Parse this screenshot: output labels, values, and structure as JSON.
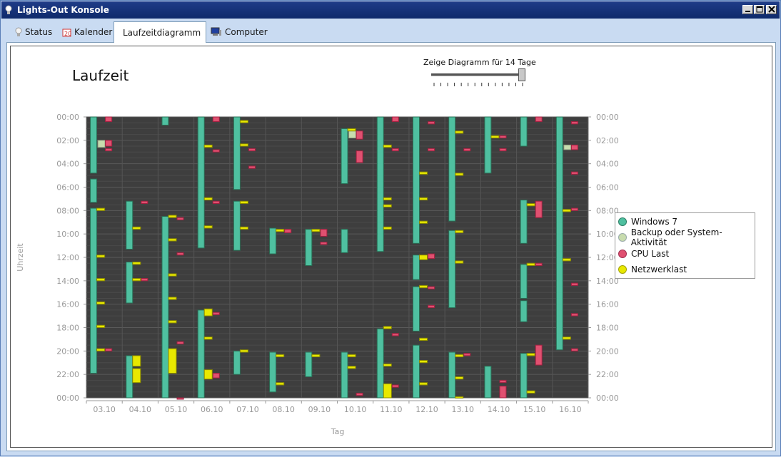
{
  "window": {
    "title": "Lights-Out Konsole"
  },
  "tabs": [
    {
      "label": "Status",
      "icon": "bulb-icon"
    },
    {
      "label": "Kalender",
      "icon": "calendar-icon"
    },
    {
      "label": "Laufzeitdiagramm",
      "icon": "bar-chart-icon",
      "active": true
    },
    {
      "label": "Computer",
      "icon": "computer-icon"
    }
  ],
  "slider": {
    "label": "Zeige Diagramm für 14 Tage",
    "value": 14,
    "ticks": 14
  },
  "chart_data": {
    "type": "timeline",
    "title": "Laufzeit",
    "xlabel": "Tag",
    "ylabel": "Uhrzeit",
    "categories": [
      "03.10",
      "04.10",
      "05.10",
      "06.10",
      "07.10",
      "08.10",
      "09.10",
      "10.10",
      "11.10",
      "12.10",
      "13.10",
      "14.10",
      "15.10",
      "16.10"
    ],
    "y_ticks": [
      "00:00",
      "02:00",
      "04:00",
      "06:00",
      "08:00",
      "10:00",
      "12:00",
      "14:00",
      "16:00",
      "18:00",
      "20:00",
      "22:00",
      "00:00"
    ],
    "ylim_hours": [
      0,
      24
    ],
    "colors": {
      "windows7": "#4fc0a0",
      "backup": "#c8dcae",
      "cpu": "#e05070",
      "network": "#e8e800"
    },
    "series": [
      {
        "name": "Windows 7",
        "color": "#4fc0a0",
        "day_offset": -0.3,
        "width": 0.18,
        "intervals": [
          [
            0,
            [
              0,
              4.8
            ]
          ],
          [
            0,
            [
              5.3,
              7.3
            ]
          ],
          [
            0,
            [
              7.8,
              21.9
            ]
          ],
          [
            1,
            [
              7.2,
              11.3
            ]
          ],
          [
            1,
            [
              12.4,
              15.9
            ]
          ],
          [
            1,
            [
              20.4,
              24
            ]
          ],
          [
            2,
            [
              0,
              0.7
            ]
          ],
          [
            2,
            [
              8.5,
              24
            ]
          ],
          [
            3,
            [
              0,
              11.2
            ]
          ],
          [
            3,
            [
              16.5,
              24
            ]
          ],
          [
            4,
            [
              0,
              6.2
            ]
          ],
          [
            4,
            [
              7.2,
              11.4
            ]
          ],
          [
            4,
            [
              20,
              22
            ]
          ],
          [
            5,
            [
              9.5,
              11.7
            ]
          ],
          [
            5,
            [
              20.1,
              23.5
            ]
          ],
          [
            6,
            [
              9.6,
              12.7
            ]
          ],
          [
            6,
            [
              20.1,
              22.2
            ]
          ],
          [
            7,
            [
              1,
              5.7
            ]
          ],
          [
            7,
            [
              9.6,
              11.6
            ]
          ],
          [
            7,
            [
              20.1,
              24
            ]
          ],
          [
            8,
            [
              0,
              11.5
            ]
          ],
          [
            8,
            [
              18.1,
              24
            ]
          ],
          [
            9,
            [
              0,
              10.8
            ]
          ],
          [
            9,
            [
              11.8,
              13.9
            ]
          ],
          [
            9,
            [
              14.5,
              18.3
            ]
          ],
          [
            9,
            [
              19.5,
              24
            ]
          ],
          [
            10,
            [
              0,
              8.9
            ]
          ],
          [
            10,
            [
              9.7,
              16.3
            ]
          ],
          [
            10,
            [
              20.1,
              24
            ]
          ],
          [
            11,
            [
              0,
              4.8
            ]
          ],
          [
            11,
            [
              21.3,
              24
            ]
          ],
          [
            12,
            [
              0,
              2.5
            ]
          ],
          [
            12,
            [
              7.1,
              10.8
            ]
          ],
          [
            12,
            [
              12.6,
              15.5
            ]
          ],
          [
            12,
            [
              15.7,
              17.5
            ]
          ],
          [
            12,
            [
              20.2,
              24
            ]
          ],
          [
            13,
            [
              0,
              19.9
            ]
          ]
        ]
      },
      {
        "name": "Backup oder System-Aktivität",
        "color": "#c8dcae",
        "day_offset": -0.08,
        "width": 0.2,
        "intervals": [
          [
            0,
            [
              2.0,
              2.6
            ]
          ],
          [
            7,
            [
              1.2,
              1.8
            ]
          ],
          [
            13,
            [
              2.4,
              2.8
            ]
          ]
        ]
      },
      {
        "name": "CPU Last",
        "color": "#e05070",
        "day_offset": 0.12,
        "width": 0.18,
        "intervals": [
          [
            0,
            [
              0.0,
              0.4
            ]
          ],
          [
            0,
            [
              2.0,
              2.5
            ]
          ],
          [
            0,
            [
              2.7,
              2.9
            ]
          ],
          [
            0,
            [
              19.8,
              20.0
            ]
          ],
          [
            1,
            [
              7.2,
              7.4
            ]
          ],
          [
            1,
            [
              13.8,
              14.0
            ]
          ],
          [
            2,
            [
              8.6,
              8.8
            ]
          ],
          [
            2,
            [
              11.6,
              11.8
            ]
          ],
          [
            2,
            [
              19.2,
              19.4
            ]
          ],
          [
            2,
            [
              24.0,
              24.2
            ]
          ],
          [
            3,
            [
              0.0,
              0.4
            ]
          ],
          [
            3,
            [
              2.8,
              3.0
            ]
          ],
          [
            3,
            [
              7.2,
              7.4
            ]
          ],
          [
            3,
            [
              16.7,
              16.9
            ]
          ],
          [
            3,
            [
              21.9,
              22.3
            ]
          ],
          [
            4,
            [
              2.7,
              2.9
            ]
          ],
          [
            4,
            [
              4.2,
              4.4
            ]
          ],
          [
            5,
            [
              9.6,
              9.9
            ]
          ],
          [
            6,
            [
              9.6,
              10.2
            ]
          ],
          [
            6,
            [
              10.7,
              10.9
            ]
          ],
          [
            7,
            [
              1.2,
              1.9
            ]
          ],
          [
            7,
            [
              2.9,
              3.9
            ]
          ],
          [
            7,
            [
              23.6,
              23.8
            ]
          ],
          [
            8,
            [
              0.0,
              0.4
            ]
          ],
          [
            8,
            [
              2.7,
              2.9
            ]
          ],
          [
            8,
            [
              18.5,
              18.7
            ]
          ],
          [
            8,
            [
              22.9,
              23.1
            ]
          ],
          [
            9,
            [
              0.4,
              0.6
            ]
          ],
          [
            9,
            [
              2.7,
              2.9
            ]
          ],
          [
            9,
            [
              11.7,
              12.1
            ]
          ],
          [
            9,
            [
              14.5,
              14.7
            ]
          ],
          [
            9,
            [
              16.1,
              16.3
            ]
          ],
          [
            10,
            [
              2.7,
              2.9
            ]
          ],
          [
            10,
            [
              20.2,
              20.4
            ]
          ],
          [
            11,
            [
              1.6,
              1.8
            ]
          ],
          [
            11,
            [
              2.7,
              2.9
            ]
          ],
          [
            11,
            [
              22.5,
              22.7
            ]
          ],
          [
            11,
            [
              23.0,
              24.0
            ]
          ],
          [
            12,
            [
              0.0,
              0.4
            ]
          ],
          [
            12,
            [
              7.2,
              8.6
            ]
          ],
          [
            12,
            [
              12.5,
              12.7
            ]
          ],
          [
            12,
            [
              19.5,
              21.2
            ]
          ],
          [
            13,
            [
              0.4,
              0.6
            ]
          ],
          [
            13,
            [
              2.4,
              2.8
            ]
          ],
          [
            13,
            [
              4.7,
              4.9
            ]
          ],
          [
            13,
            [
              7.8,
              8.0
            ]
          ],
          [
            13,
            [
              14.2,
              14.4
            ]
          ],
          [
            13,
            [
              16.8,
              17.0
            ]
          ],
          [
            13,
            [
              19.8,
              20.0
            ]
          ]
        ]
      },
      {
        "name": "Netzwerklast",
        "color": "#e8e800",
        "day_offset": -0.1,
        "width": 0.22,
        "intervals": [
          [
            0,
            [
              7.8,
              8.0
            ]
          ],
          [
            0,
            [
              11.8,
              12.0
            ]
          ],
          [
            0,
            [
              13.8,
              14.0
            ]
          ],
          [
            0,
            [
              15.8,
              16.0
            ]
          ],
          [
            0,
            [
              17.8,
              18.0
            ]
          ],
          [
            0,
            [
              19.8,
              20.0
            ]
          ],
          [
            1,
            [
              9.4,
              9.6
            ]
          ],
          [
            1,
            [
              12.4,
              12.6
            ]
          ],
          [
            1,
            [
              13.8,
              14.0
            ]
          ],
          [
            1,
            [
              20.4,
              21.3
            ]
          ],
          [
            1,
            [
              21.5,
              22.7
            ]
          ],
          [
            2,
            [
              8.4,
              8.6
            ]
          ],
          [
            2,
            [
              10.4,
              10.6
            ]
          ],
          [
            2,
            [
              13.4,
              13.6
            ]
          ],
          [
            2,
            [
              15.4,
              15.6
            ]
          ],
          [
            2,
            [
              17.4,
              17.6
            ]
          ],
          [
            2,
            [
              19.8,
              21.9
            ]
          ],
          [
            3,
            [
              2.4,
              2.6
            ]
          ],
          [
            3,
            [
              6.9,
              7.1
            ]
          ],
          [
            3,
            [
              9.3,
              9.5
            ]
          ],
          [
            3,
            [
              16.4,
              17.0
            ]
          ],
          [
            3,
            [
              18.8,
              19.0
            ]
          ],
          [
            3,
            [
              21.6,
              22.4
            ]
          ],
          [
            4,
            [
              0.3,
              0.5
            ]
          ],
          [
            4,
            [
              2.3,
              2.5
            ]
          ],
          [
            4,
            [
              7.2,
              7.4
            ]
          ],
          [
            4,
            [
              9.4,
              9.6
            ]
          ],
          [
            4,
            [
              19.9,
              20.1
            ]
          ],
          [
            5,
            [
              9.6,
              9.8
            ]
          ],
          [
            5,
            [
              20.3,
              20.5
            ]
          ],
          [
            5,
            [
              22.7,
              22.9
            ]
          ],
          [
            6,
            [
              9.6,
              9.8
            ]
          ],
          [
            6,
            [
              20.3,
              20.5
            ]
          ],
          [
            7,
            [
              1.0,
              1.2
            ]
          ],
          [
            7,
            [
              20.3,
              20.5
            ]
          ],
          [
            7,
            [
              21.3,
              21.5
            ]
          ],
          [
            8,
            [
              2.4,
              2.6
            ]
          ],
          [
            8,
            [
              6.9,
              7.1
            ]
          ],
          [
            8,
            [
              7.5,
              7.7
            ]
          ],
          [
            8,
            [
              9.4,
              9.6
            ]
          ],
          [
            8,
            [
              17.9,
              18.1
            ]
          ],
          [
            8,
            [
              21.1,
              21.3
            ]
          ],
          [
            8,
            [
              22.8,
              24.0
            ]
          ],
          [
            9,
            [
              4.7,
              4.9
            ]
          ],
          [
            9,
            [
              6.9,
              7.1
            ]
          ],
          [
            9,
            [
              8.9,
              9.1
            ]
          ],
          [
            9,
            [
              11.8,
              12.2
            ]
          ],
          [
            9,
            [
              14.4,
              14.6
            ]
          ],
          [
            9,
            [
              18.9,
              19.1
            ]
          ],
          [
            9,
            [
              20.8,
              21.0
            ]
          ],
          [
            9,
            [
              22.7,
              22.9
            ]
          ],
          [
            10,
            [
              1.2,
              1.4
            ]
          ],
          [
            10,
            [
              4.8,
              5.0
            ]
          ],
          [
            10,
            [
              9.7,
              9.9
            ]
          ],
          [
            10,
            [
              12.3,
              12.5
            ]
          ],
          [
            10,
            [
              20.3,
              20.5
            ]
          ],
          [
            10,
            [
              22.2,
              22.4
            ]
          ],
          [
            10,
            [
              23.9,
              24.1
            ]
          ],
          [
            11,
            [
              1.6,
              1.8
            ]
          ],
          [
            12,
            [
              7.4,
              7.6
            ]
          ],
          [
            12,
            [
              12.5,
              12.7
            ]
          ],
          [
            12,
            [
              20.2,
              20.4
            ]
          ],
          [
            12,
            [
              23.4,
              23.6
            ]
          ],
          [
            13,
            [
              7.9,
              8.1
            ]
          ],
          [
            13,
            [
              12.1,
              12.3
            ]
          ],
          [
            13,
            [
              18.8,
              19.0
            ]
          ]
        ]
      }
    ]
  }
}
